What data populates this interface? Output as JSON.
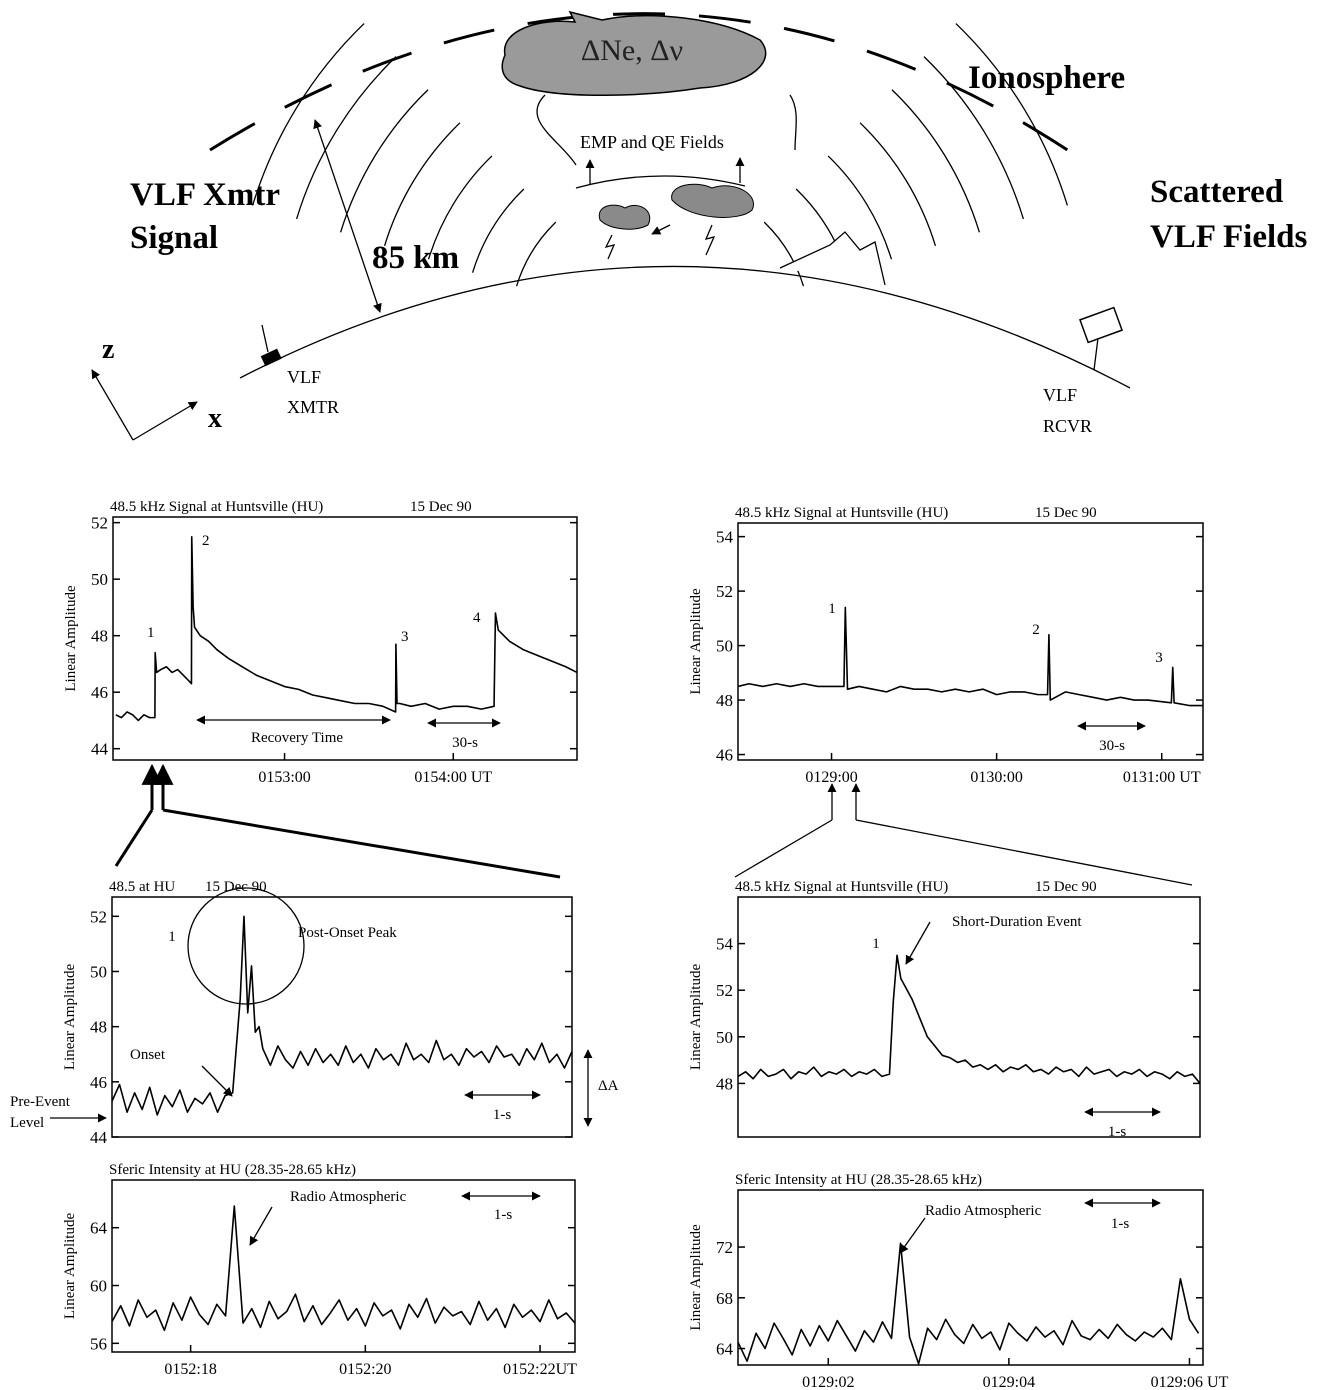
{
  "diagram": {
    "cloud_label": "ΔNe, Δν",
    "ionosphere": "Ionosphere",
    "emp_label": "EMP and QE Fields",
    "xmtr_signal": [
      "VLF Xmtr",
      "Signal"
    ],
    "height": "85 km",
    "scattered": [
      "Scattered",
      "VLF Fields"
    ],
    "axis_z": "z",
    "axis_x": "x",
    "xmtr": [
      "VLF",
      "XMTR"
    ],
    "rcvr": [
      "VLF",
      "RCVR"
    ]
  },
  "chart_data": [
    {
      "type": "line",
      "title": "48.5 kHz Signal at Huntsville (HU)",
      "subtitle": "15 Dec 90",
      "y_label": "Linear Amplitude",
      "color": "#000000",
      "xlim": [
        -1,
        164
      ],
      "ylim": [
        43.6,
        52.2
      ],
      "yticks": [
        44,
        46,
        48,
        50,
        52
      ],
      "xticks": [
        {
          "value": 60,
          "label": "0153:00"
        },
        {
          "value": 120,
          "label": "0154:00 UT"
        }
      ],
      "x": [
        0,
        2,
        4,
        6,
        8,
        10,
        12,
        13.9,
        14,
        14.5,
        16,
        18,
        20,
        22,
        24,
        26,
        26.9,
        27,
        27.5,
        28,
        30,
        33,
        36,
        40,
        45,
        50,
        55,
        60,
        65,
        70,
        75,
        80,
        85,
        90,
        95,
        99.5,
        99.6,
        100,
        101,
        105,
        110,
        115,
        120,
        125,
        130,
        134.5,
        135,
        136,
        140,
        145,
        150,
        155,
        160,
        164
      ],
      "values": [
        45.2,
        45.1,
        45.3,
        45.2,
        45.0,
        45.2,
        45.1,
        45.1,
        47.4,
        46.7,
        46.8,
        46.9,
        46.7,
        46.8,
        46.6,
        46.4,
        46.3,
        51.5,
        49.0,
        48.3,
        48.0,
        47.8,
        47.5,
        47.2,
        46.9,
        46.6,
        46.4,
        46.2,
        46.1,
        45.9,
        45.8,
        45.7,
        45.6,
        45.6,
        45.5,
        45.3,
        47.7,
        45.6,
        45.6,
        45.5,
        45.6,
        45.4,
        45.5,
        45.5,
        45.4,
        45.5,
        48.8,
        48.2,
        47.8,
        47.5,
        47.3,
        47.1,
        46.9,
        46.7
      ],
      "annotations": [
        "1",
        "2",
        "3",
        "4",
        "Recovery Time",
        "30-s"
      ]
    },
    {
      "type": "line",
      "title": "48.5 kHz Signal at Huntsville (HU)",
      "subtitle": "15 Dec 90",
      "y_label": "Linear Amplitude",
      "color": "#000000",
      "xlim": [
        26,
        195
      ],
      "ylim": [
        45.8,
        54.5
      ],
      "yticks": [
        46,
        48,
        50,
        52,
        54
      ],
      "xticks": [
        {
          "value": 60,
          "label": "0129:00"
        },
        {
          "value": 120,
          "label": "0130:00"
        },
        {
          "value": 180,
          "label": "0131:00 UT"
        }
      ],
      "x": [
        26,
        30,
        35,
        40,
        45,
        50,
        55,
        60,
        64.5,
        65,
        65.8,
        70,
        75,
        80,
        85,
        90,
        95,
        100,
        105,
        110,
        115,
        120,
        125,
        130,
        135,
        138.5,
        139,
        139.5,
        145,
        150,
        155,
        160,
        165,
        170,
        175,
        183.5,
        184,
        184.5,
        190,
        195
      ],
      "values": [
        48.5,
        48.6,
        48.5,
        48.6,
        48.5,
        48.6,
        48.5,
        48.5,
        48.5,
        51.4,
        48.4,
        48.5,
        48.4,
        48.3,
        48.5,
        48.4,
        48.4,
        48.3,
        48.4,
        48.3,
        48.4,
        48.2,
        48.3,
        48.3,
        48.2,
        48.2,
        50.4,
        48.0,
        48.3,
        48.2,
        48.1,
        48.0,
        48.1,
        48.0,
        48.0,
        47.9,
        49.2,
        47.9,
        47.8,
        47.8
      ],
      "annotations": [
        "1",
        "2",
        "3",
        "30-s"
      ]
    },
    {
      "type": "line",
      "title": "48.5 at HU",
      "subtitle": "15 Dec 90",
      "y_label": "Linear Amplitude",
      "color": "#000000",
      "xlim": [
        0,
        6.1
      ],
      "ylim": [
        44,
        52.7
      ],
      "yticks": [
        44,
        46,
        48,
        50,
        52
      ],
      "x": [
        0,
        0.1,
        0.2,
        0.3,
        0.4,
        0.5,
        0.6,
        0.7,
        0.8,
        0.9,
        1,
        1.1,
        1.2,
        1.3,
        1.4,
        1.5,
        1.6,
        1.7,
        1.75,
        1.8,
        1.85,
        1.9,
        1.95,
        2,
        2.1,
        2.2,
        2.3,
        2.4,
        2.5,
        2.6,
        2.7,
        2.8,
        2.9,
        3,
        3.1,
        3.2,
        3.3,
        3.4,
        3.5,
        3.6,
        3.7,
        3.8,
        3.9,
        4,
        4.1,
        4.2,
        4.3,
        4.4,
        4.5,
        4.6,
        4.7,
        4.8,
        4.9,
        5,
        5.1,
        5.2,
        5.3,
        5.4,
        5.5,
        5.6,
        5.7,
        5.8,
        5.9,
        6,
        6.1
      ],
      "values": [
        45.3,
        45.9,
        44.9,
        45.6,
        45.0,
        45.8,
        44.8,
        45.5,
        45.1,
        45.7,
        44.9,
        45.4,
        45.2,
        45.6,
        44.9,
        45.5,
        45.6,
        49.0,
        52.0,
        48.5,
        50.2,
        47.8,
        48.0,
        47.2,
        46.6,
        47.3,
        46.8,
        46.5,
        47.1,
        46.6,
        47.2,
        46.7,
        47.0,
        46.6,
        47.3,
        46.7,
        47.0,
        46.5,
        47.2,
        46.8,
        47.0,
        46.6,
        47.4,
        46.8,
        47.0,
        46.7,
        47.5,
        46.8,
        47.0,
        46.6,
        47.2,
        46.9,
        47.1,
        46.7,
        47.3,
        46.9,
        47.0,
        46.6,
        47.2,
        46.8,
        47.4,
        46.7,
        47.0,
        46.5,
        47.1
      ],
      "annotations": [
        "1",
        "Post-Onset Peak",
        "Onset",
        "Pre-Event",
        "Level",
        "ΔA",
        "1-s"
      ]
    },
    {
      "type": "line",
      "title": "48.5 kHz Signal at Huntsville (HU)",
      "subtitle": "15 Dec 90",
      "y_label": "Linear Amplitude",
      "color": "#000000",
      "xlim": [
        0,
        6.1
      ],
      "ylim": [
        45.7,
        56
      ],
      "yticks": [
        48,
        50,
        52,
        54
      ],
      "x": [
        0,
        0.1,
        0.2,
        0.3,
        0.4,
        0.5,
        0.6,
        0.7,
        0.8,
        0.9,
        1,
        1.1,
        1.2,
        1.3,
        1.4,
        1.5,
        1.6,
        1.7,
        1.8,
        1.9,
        2,
        2.05,
        2.1,
        2.15,
        2.2,
        2.3,
        2.4,
        2.5,
        2.6,
        2.7,
        2.8,
        2.9,
        3,
        3.1,
        3.2,
        3.3,
        3.4,
        3.5,
        3.6,
        3.7,
        3.8,
        3.9,
        4,
        4.1,
        4.2,
        4.3,
        4.4,
        4.5,
        4.6,
        4.7,
        4.8,
        4.9,
        5,
        5.1,
        5.2,
        5.3,
        5.4,
        5.5,
        5.6,
        5.7,
        5.8,
        5.9,
        6,
        6.1
      ],
      "values": [
        48.3,
        48.5,
        48.2,
        48.6,
        48.3,
        48.4,
        48.6,
        48.2,
        48.5,
        48.4,
        48.7,
        48.3,
        48.5,
        48.4,
        48.6,
        48.3,
        48.5,
        48.4,
        48.6,
        48.3,
        48.4,
        51.5,
        53.5,
        52.5,
        52.2,
        51.6,
        50.8,
        50.0,
        49.6,
        49.2,
        49.1,
        48.9,
        49.0,
        48.7,
        48.8,
        48.6,
        48.8,
        48.5,
        48.7,
        48.6,
        48.8,
        48.5,
        48.6,
        48.4,
        48.7,
        48.5,
        48.6,
        48.3,
        48.7,
        48.4,
        48.5,
        48.6,
        48.3,
        48.5,
        48.4,
        48.6,
        48.3,
        48.5,
        48.4,
        48.2,
        48.5,
        48.3,
        48.4,
        48.0
      ],
      "annotations": [
        "1",
        "Short-Duration Event",
        "1-s"
      ]
    },
    {
      "type": "line",
      "title": "Sferic Intensity at HU (28.35-28.65 kHz)",
      "y_label": "Linear Amplitude",
      "color": "#000000",
      "xlim": [
        17.1,
        22.4
      ],
      "ylim": [
        55.4,
        67.3
      ],
      "yticks": [
        56,
        60,
        64
      ],
      "xticks": [
        {
          "value": 18,
          "label": "0152:18"
        },
        {
          "value": 20,
          "label": "0152:20"
        },
        {
          "value": 22,
          "label": "0152:22UT"
        }
      ],
      "x": [
        17.1,
        17.2,
        17.3,
        17.4,
        17.5,
        17.6,
        17.7,
        17.8,
        17.9,
        18,
        18.1,
        18.2,
        18.3,
        18.4,
        18.5,
        18.6,
        18.7,
        18.8,
        18.9,
        19,
        19.1,
        19.2,
        19.3,
        19.4,
        19.5,
        19.6,
        19.7,
        19.8,
        19.9,
        20,
        20.1,
        20.2,
        20.3,
        20.4,
        20.5,
        20.6,
        20.7,
        20.8,
        20.9,
        21,
        21.1,
        21.2,
        21.3,
        21.4,
        21.5,
        21.6,
        21.7,
        21.8,
        21.9,
        22,
        22.1,
        22.2,
        22.3,
        22.4
      ],
      "values": [
        57.5,
        58.6,
        57.2,
        59.0,
        57.8,
        58.3,
        56.9,
        58.8,
        57.6,
        59.2,
        58.0,
        57.3,
        58.7,
        57.9,
        65.5,
        57.4,
        58.4,
        57.1,
        58.9,
        57.7,
        58.2,
        59.4,
        57.5,
        58.6,
        57.3,
        58.1,
        59.0,
        57.6,
        58.4,
        57.2,
        58.8,
        57.9,
        58.3,
        57.0,
        58.7,
        57.8,
        59.1,
        57.4,
        58.5,
        57.9,
        58.2,
        57.3,
        58.9,
        57.6,
        58.4,
        57.1,
        58.7,
        57.8,
        58.3,
        57.5,
        59.0,
        57.7,
        58.1,
        57.4
      ],
      "annotations": [
        "Radio Atmospheric",
        "1-s"
      ]
    },
    {
      "type": "line",
      "title": "Sferic Intensity at HU (28.35-28.65 kHz)",
      "y_label": "Linear Amplitude",
      "color": "#000000",
      "xlim": [
        1,
        6.15
      ],
      "ylim": [
        62.7,
        76.5
      ],
      "yticks": [
        64,
        68,
        72
      ],
      "xticks": [
        {
          "value": 2,
          "label": "0129:02"
        },
        {
          "value": 4,
          "label": "0129:04"
        },
        {
          "value": 6,
          "label": "0129:06 UT"
        }
      ],
      "x": [
        1,
        1.1,
        1.2,
        1.3,
        1.4,
        1.5,
        1.6,
        1.7,
        1.8,
        1.9,
        2,
        2.1,
        2.2,
        2.3,
        2.4,
        2.5,
        2.6,
        2.7,
        2.8,
        2.9,
        3,
        3.1,
        3.2,
        3.3,
        3.4,
        3.5,
        3.6,
        3.7,
        3.8,
        3.9,
        4,
        4.1,
        4.2,
        4.3,
        4.4,
        4.5,
        4.6,
        4.7,
        4.8,
        4.9,
        5,
        5.1,
        5.2,
        5.3,
        5.4,
        5.5,
        5.6,
        5.7,
        5.8,
        5.9,
        6,
        6.1
      ],
      "values": [
        64.5,
        63.0,
        65.2,
        64.0,
        66.0,
        64.8,
        63.5,
        65.5,
        64.2,
        65.8,
        64.6,
        66.2,
        65.0,
        63.8,
        65.4,
        64.5,
        66.1,
        64.8,
        72.3,
        64.9,
        62.8,
        65.6,
        64.7,
        66.3,
        65.1,
        64.4,
        65.9,
        64.8,
        65.3,
        63.9,
        66.0,
        65.2,
        64.6,
        65.7,
        64.9,
        65.4,
        64.3,
        66.2,
        65.0,
        64.7,
        65.5,
        64.8,
        65.9,
        65.1,
        64.6,
        65.3,
        64.9,
        65.6,
        64.7,
        69.5,
        66.3,
        65.2
      ],
      "annotations": [
        "Radio Atmospheric",
        "1-s"
      ]
    }
  ]
}
